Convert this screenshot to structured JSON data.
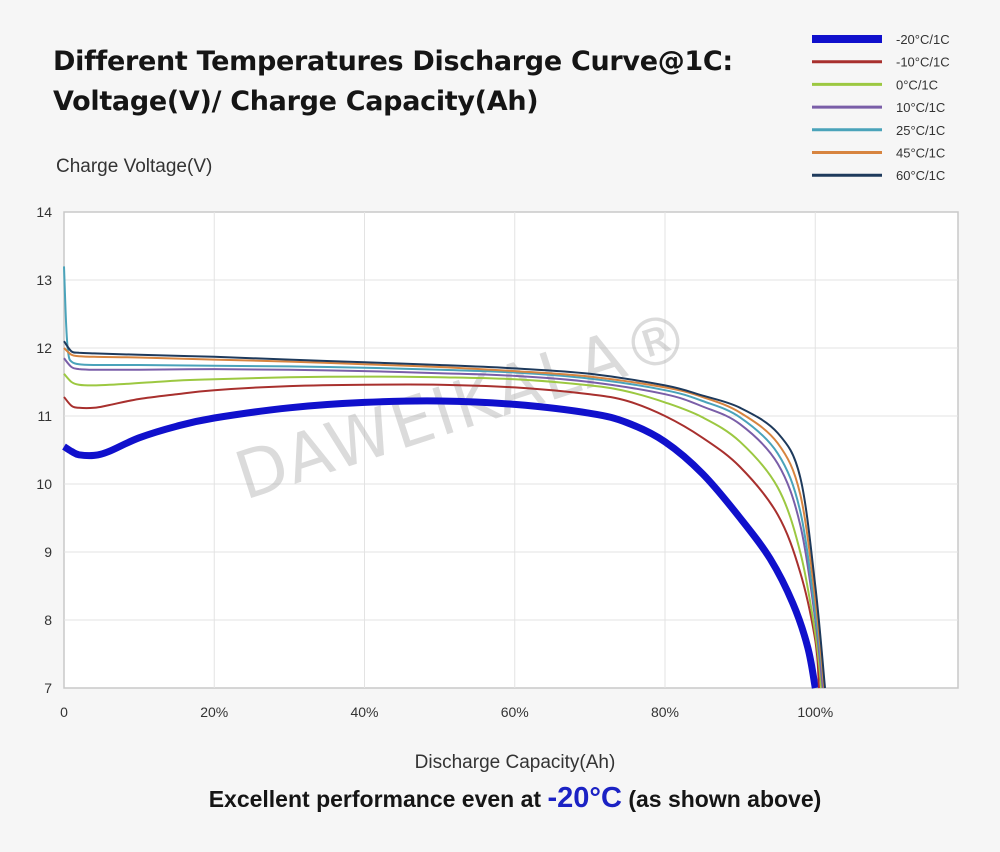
{
  "chart_data": {
    "type": "line",
    "title_line1": "Different Temperatures Discharge Curve@1C:",
    "title_line2": "Voltage(V)/ Charge Capacity(Ah)",
    "ylabel": "Charge Voltage(V)",
    "xlabel": "Discharge Capacity(Ah)",
    "ylim": [
      7,
      14
    ],
    "xlim": [
      0,
      1.19
    ],
    "yticks": [
      "7",
      "8",
      "9",
      "10",
      "11",
      "12",
      "13",
      "14"
    ],
    "xticks": [
      "0",
      "20%",
      "40%",
      "60%",
      "80%",
      "100%"
    ],
    "grid": true,
    "legend_position": "top-right",
    "watermark": "DAWEIKALA®",
    "series": [
      {
        "name": "-20°C/1C",
        "color": "#1010cc",
        "width": 7,
        "x": [
          0,
          0.01,
          0.02,
          0.04,
          0.06,
          0.1,
          0.15,
          0.2,
          0.3,
          0.4,
          0.5,
          0.6,
          0.7,
          0.75,
          0.8,
          0.85,
          0.9,
          0.94,
          0.97,
          0.99,
          1.0
        ],
        "y": [
          10.55,
          10.48,
          10.43,
          10.42,
          10.48,
          10.68,
          10.85,
          10.97,
          11.12,
          11.2,
          11.22,
          11.17,
          11.04,
          10.9,
          10.62,
          10.15,
          9.5,
          8.9,
          8.25,
          7.6,
          7.0
        ]
      },
      {
        "name": "-10°C/1C",
        "color": "#a8302e",
        "width": 2,
        "x": [
          0,
          0.01,
          0.02,
          0.04,
          0.06,
          0.1,
          0.15,
          0.2,
          0.3,
          0.4,
          0.5,
          0.6,
          0.7,
          0.75,
          0.8,
          0.85,
          0.9,
          0.95,
          0.98,
          1.0,
          1.005
        ],
        "y": [
          11.28,
          11.15,
          11.12,
          11.12,
          11.16,
          11.25,
          11.32,
          11.38,
          11.44,
          11.46,
          11.46,
          11.42,
          11.32,
          11.22,
          11.0,
          10.68,
          10.25,
          9.55,
          8.7,
          7.7,
          7.0
        ]
      },
      {
        "name": "0°C/1C",
        "color": "#9cc841",
        "width": 2,
        "x": [
          0,
          0.01,
          0.02,
          0.04,
          0.08,
          0.15,
          0.2,
          0.3,
          0.4,
          0.5,
          0.6,
          0.7,
          0.75,
          0.8,
          0.85,
          0.9,
          0.95,
          0.98,
          1.0,
          1.008
        ],
        "y": [
          11.62,
          11.5,
          11.46,
          11.45,
          11.47,
          11.52,
          11.54,
          11.57,
          11.58,
          11.57,
          11.54,
          11.45,
          11.36,
          11.2,
          10.98,
          10.62,
          9.95,
          9.0,
          7.8,
          7.0
        ]
      },
      {
        "name": "10°C/1C",
        "color": "#7a5ea8",
        "width": 2,
        "x": [
          0,
          0.01,
          0.02,
          0.04,
          0.1,
          0.2,
          0.3,
          0.4,
          0.5,
          0.6,
          0.7,
          0.8,
          0.85,
          0.9,
          0.95,
          0.98,
          1.0,
          1.01
        ],
        "y": [
          11.85,
          11.72,
          11.69,
          11.68,
          11.68,
          11.69,
          11.68,
          11.66,
          11.63,
          11.59,
          11.5,
          11.32,
          11.14,
          10.88,
          10.3,
          9.4,
          8.0,
          7.0
        ]
      },
      {
        "name": "25°C/1C",
        "color": "#4aa3ba",
        "width": 2,
        "x": [
          0,
          0.003,
          0.006,
          0.01,
          0.02,
          0.04,
          0.1,
          0.2,
          0.3,
          0.4,
          0.5,
          0.6,
          0.7,
          0.8,
          0.85,
          0.9,
          0.95,
          0.98,
          1.0,
          1.012
        ],
        "y": [
          13.2,
          12.3,
          11.9,
          11.8,
          11.76,
          11.75,
          11.75,
          11.74,
          11.73,
          11.71,
          11.68,
          11.64,
          11.55,
          11.38,
          11.22,
          10.98,
          10.45,
          9.6,
          8.1,
          7.0
        ]
      },
      {
        "name": "45°C/1C",
        "color": "#d7843f",
        "width": 2,
        "x": [
          0,
          0.01,
          0.02,
          0.04,
          0.1,
          0.2,
          0.3,
          0.4,
          0.5,
          0.6,
          0.7,
          0.8,
          0.85,
          0.9,
          0.95,
          0.98,
          1.0,
          1.012
        ],
        "y": [
          12.0,
          11.9,
          11.88,
          11.87,
          11.86,
          11.83,
          11.8,
          11.76,
          11.72,
          11.66,
          11.58,
          11.42,
          11.28,
          11.05,
          10.6,
          9.85,
          8.3,
          7.0
        ]
      },
      {
        "name": "60°C/1C",
        "color": "#1e3a5c",
        "width": 2,
        "x": [
          0,
          0.01,
          0.02,
          0.04,
          0.1,
          0.2,
          0.3,
          0.4,
          0.5,
          0.6,
          0.7,
          0.8,
          0.85,
          0.9,
          0.95,
          0.98,
          1.0,
          1.013
        ],
        "y": [
          12.1,
          11.95,
          11.93,
          11.92,
          11.9,
          11.87,
          11.83,
          11.79,
          11.75,
          11.7,
          11.62,
          11.45,
          11.3,
          11.12,
          10.75,
          10.1,
          8.5,
          7.0
        ]
      }
    ]
  },
  "caption": {
    "prefix": "Excellent performance even at",
    "highlight": "-20°C",
    "suffix": "(as shown above)"
  }
}
